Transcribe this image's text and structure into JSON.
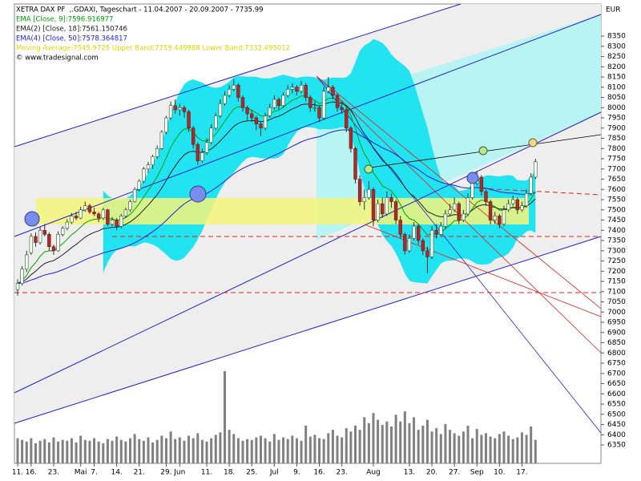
{
  "chart_data": {
    "type": "candlestick",
    "header": "XETRA DAX PF  ,.GDAXI, Tageschart - 11.04.2007 - 20.09.2007 - 7735.99",
    "credit": "© www.tradesignal.com",
    "currency": "EUR",
    "indicators": [
      {
        "label": "EMA [Close, 9]:7596.916977",
        "color": "#00a000",
        "period": 9
      },
      {
        "label": "EMA(2) [Close, 18]:7561.150746",
        "color": "#202020",
        "period": 18
      },
      {
        "label": "EMA(4) [Close, 50]:7578.364817",
        "color": "#2020d0",
        "period": 50
      },
      {
        "label": "Moving Average:7545.9725 Upper Band:7759.449988 Lower Band:7332.495012",
        "color": "#d8d800"
      }
    ],
    "band_color": "#22e4f0",
    "up_color": "#ffffff",
    "down_color": "#b02828",
    "volume_color": "#808080",
    "ylim": [
      6260,
      8507
    ],
    "yticks": [
      6350,
      6400,
      6450,
      6500,
      6550,
      6600,
      6650,
      6700,
      6750,
      6800,
      6850,
      6900,
      6950,
      7000,
      7050,
      7100,
      7150,
      7200,
      7250,
      7300,
      7350,
      7400,
      7450,
      7500,
      7550,
      7600,
      7650,
      7700,
      7750,
      7800,
      7850,
      7900,
      7950,
      8000,
      8050,
      8100,
      8150,
      8200,
      8250,
      8300,
      8350
    ],
    "categories": [
      "11.",
      null,
      null,
      "16.",
      null,
      null,
      null,
      null,
      "23.",
      null,
      null,
      null,
      null,
      null,
      "Mai",
      null,
      null,
      "7.",
      null,
      null,
      null,
      null,
      "14.",
      null,
      null,
      null,
      null,
      "21.",
      null,
      null,
      null,
      null,
      null,
      "29.",
      null,
      null,
      "Jun",
      null,
      null,
      null,
      null,
      null,
      "11.",
      null,
      null,
      null,
      null,
      "18.",
      null,
      null,
      null,
      null,
      "25.",
      null,
      null,
      null,
      null,
      "Jul",
      null,
      null,
      null,
      null,
      "9.",
      null,
      null,
      null,
      null,
      "16.",
      null,
      null,
      null,
      null,
      "23.",
      null,
      null,
      null,
      null,
      null,
      null,
      "Aug",
      null,
      null,
      null,
      null,
      null,
      null,
      null,
      "13.",
      null,
      null,
      null,
      null,
      "20.",
      null,
      null,
      null,
      null,
      "27.",
      null,
      null,
      null,
      null,
      "Sep",
      null,
      null,
      null,
      null,
      "10.",
      null,
      null,
      null,
      null,
      "17.",
      null,
      null,
      null
    ],
    "ohlc": [
      [
        7110,
        7160,
        7080,
        7140
      ],
      [
        7140,
        7225,
        7130,
        7210
      ],
      [
        7210,
        7300,
        7195,
        7280
      ],
      [
        7290,
        7385,
        7280,
        7370
      ],
      [
        7370,
        7390,
        7320,
        7340
      ],
      [
        7340,
        7415,
        7330,
        7400
      ],
      [
        7400,
        7430,
        7370,
        7380
      ],
      [
        7380,
        7390,
        7300,
        7320
      ],
      [
        7320,
        7330,
        7280,
        7300
      ],
      [
        7300,
        7395,
        7295,
        7380
      ],
      [
        7380,
        7420,
        7370,
        7410
      ],
      [
        7410,
        7455,
        7400,
        7440
      ],
      [
        7440,
        7485,
        7430,
        7470
      ],
      [
        7470,
        7490,
        7450,
        7460
      ],
      [
        7460,
        7515,
        7455,
        7500
      ],
      [
        7500,
        7540,
        7490,
        7520
      ],
      [
        7520,
        7530,
        7480,
        7490
      ],
      [
        7490,
        7510,
        7470,
        7480
      ],
      [
        7480,
        7490,
        7440,
        7460
      ],
      [
        7460,
        7510,
        7450,
        7500
      ],
      [
        7500,
        7505,
        7420,
        7430
      ],
      [
        7430,
        7465,
        7420,
        7450
      ],
      [
        7450,
        7460,
        7400,
        7420
      ],
      [
        7420,
        7480,
        7410,
        7470
      ],
      [
        7470,
        7510,
        7460,
        7500
      ],
      [
        7500,
        7550,
        7490,
        7540
      ],
      [
        7540,
        7610,
        7535,
        7600
      ],
      [
        7600,
        7650,
        7590,
        7640
      ],
      [
        7640,
        7710,
        7630,
        7700
      ],
      [
        7700,
        7735,
        7680,
        7720
      ],
      [
        7720,
        7770,
        7700,
        7760
      ],
      [
        7760,
        7815,
        7750,
        7800
      ],
      [
        7800,
        7890,
        7795,
        7880
      ],
      [
        7880,
        7960,
        7870,
        7950
      ],
      [
        7950,
        8030,
        7940,
        8010
      ],
      [
        8010,
        8040,
        7970,
        7990
      ],
      [
        7990,
        8020,
        7960,
        8000
      ],
      [
        8000,
        8010,
        7950,
        7980
      ],
      [
        7980,
        7990,
        7880,
        7900
      ],
      [
        7900,
        7910,
        7800,
        7820
      ],
      [
        7820,
        7830,
        7720,
        7740
      ],
      [
        7740,
        7800,
        7730,
        7780
      ],
      [
        7780,
        7850,
        7770,
        7830
      ],
      [
        7830,
        7920,
        7820,
        7900
      ],
      [
        7900,
        7975,
        7890,
        7960
      ],
      [
        7960,
        8040,
        7950,
        8020
      ],
      [
        8020,
        8080,
        8010,
        8060
      ],
      [
        8060,
        8110,
        8050,
        8090
      ],
      [
        8090,
        8140,
        8080,
        8110
      ],
      [
        8110,
        8120,
        8030,
        8050
      ],
      [
        8050,
        8060,
        7980,
        8000
      ],
      [
        8000,
        8010,
        7940,
        7970
      ],
      [
        7970,
        7990,
        7930,
        7950
      ],
      [
        7950,
        7960,
        7890,
        7920
      ],
      [
        7920,
        7930,
        7860,
        7900
      ],
      [
        7900,
        7975,
        7890,
        7960
      ],
      [
        7960,
        8020,
        7950,
        8000
      ],
      [
        8000,
        8060,
        7990,
        8040
      ],
      [
        8040,
        8050,
        7990,
        8010
      ],
      [
        8010,
        8075,
        8000,
        8060
      ],
      [
        8060,
        8110,
        8050,
        8090
      ],
      [
        8090,
        8120,
        8070,
        8100
      ],
      [
        8100,
        8110,
        8060,
        8080
      ],
      [
        8080,
        8130,
        8070,
        8110
      ],
      [
        8110,
        8120,
        8030,
        8050
      ],
      [
        8050,
        8060,
        7980,
        8000
      ],
      [
        8000,
        8030,
        7980,
        8000
      ],
      [
        8000,
        8010,
        7930,
        7950
      ],
      [
        7950,
        8100,
        7940,
        8080
      ],
      [
        8080,
        8150,
        8070,
        8100
      ],
      [
        8100,
        8110,
        8040,
        8060
      ],
      [
        8060,
        8070,
        7980,
        8000
      ],
      [
        8000,
        8030,
        7970,
        7990
      ],
      [
        7990,
        8000,
        7880,
        7900
      ],
      [
        7900,
        7910,
        7780,
        7800
      ],
      [
        7800,
        7810,
        7630,
        7650
      ],
      [
        7650,
        7670,
        7520,
        7540
      ],
      [
        7540,
        7600,
        7500,
        7560
      ],
      [
        7560,
        7640,
        7550,
        7600
      ],
      [
        7600,
        7610,
        7420,
        7450
      ],
      [
        7450,
        7550,
        7440,
        7530
      ],
      [
        7530,
        7560,
        7460,
        7480
      ],
      [
        7480,
        7590,
        7470,
        7560
      ],
      [
        7560,
        7580,
        7510,
        7540
      ],
      [
        7540,
        7550,
        7430,
        7450
      ],
      [
        7450,
        7470,
        7360,
        7380
      ],
      [
        7380,
        7390,
        7280,
        7300
      ],
      [
        7300,
        7380,
        7290,
        7360
      ],
      [
        7360,
        7440,
        7350,
        7420
      ],
      [
        7420,
        7430,
        7330,
        7350
      ],
      [
        7350,
        7360,
        7280,
        7300
      ],
      [
        7300,
        7320,
        7190,
        7270
      ],
      [
        7270,
        7420,
        7260,
        7400
      ],
      [
        7400,
        7430,
        7360,
        7380
      ],
      [
        7380,
        7440,
        7370,
        7420
      ],
      [
        7420,
        7500,
        7410,
        7480
      ],
      [
        7480,
        7530,
        7470,
        7500
      ],
      [
        7500,
        7560,
        7490,
        7530
      ],
      [
        7530,
        7540,
        7430,
        7450
      ],
      [
        7450,
        7500,
        7440,
        7480
      ],
      [
        7480,
        7580,
        7470,
        7560
      ],
      [
        7560,
        7650,
        7550,
        7630
      ],
      [
        7630,
        7690,
        7620,
        7660
      ],
      [
        7660,
        7670,
        7570,
        7590
      ],
      [
        7590,
        7600,
        7520,
        7540
      ],
      [
        7540,
        7550,
        7430,
        7450
      ],
      [
        7450,
        7490,
        7430,
        7470
      ],
      [
        7470,
        7480,
        7410,
        7430
      ],
      [
        7430,
        7520,
        7420,
        7500
      ],
      [
        7500,
        7550,
        7490,
        7530
      ],
      [
        7530,
        7570,
        7520,
        7550
      ],
      [
        7550,
        7560,
        7480,
        7500
      ],
      [
        7500,
        7540,
        7490,
        7520
      ],
      [
        7520,
        7600,
        7510,
        7580
      ],
      [
        7580,
        7680,
        7570,
        7660
      ],
      [
        7660,
        7750,
        7650,
        7736
      ]
    ],
    "volume": [
      30,
      28,
      26,
      30,
      24,
      27,
      29,
      25,
      31,
      26,
      28,
      27,
      30,
      25,
      33,
      28,
      27,
      30,
      26,
      24,
      29,
      27,
      32,
      28,
      26,
      30,
      35,
      29,
      27,
      31,
      25,
      28,
      33,
      30,
      38,
      29,
      31,
      27,
      33,
      30,
      36,
      28,
      26,
      30,
      34,
      37,
      110,
      40,
      35,
      30,
      27,
      29,
      28,
      31,
      33,
      30,
      26,
      35,
      28,
      31,
      29,
      33,
      30,
      27,
      45,
      32,
      34,
      30,
      29,
      36,
      40,
      33,
      31,
      42,
      38,
      45,
      40,
      55,
      48,
      60,
      52,
      46,
      50,
      44,
      58,
      50,
      62,
      48,
      55,
      40,
      45,
      52,
      38,
      42,
      35,
      47,
      40,
      36,
      33,
      38,
      45,
      30,
      41,
      34,
      36,
      32,
      30,
      35,
      38,
      33,
      29,
      31,
      37,
      34,
      44,
      28
    ]
  }
}
